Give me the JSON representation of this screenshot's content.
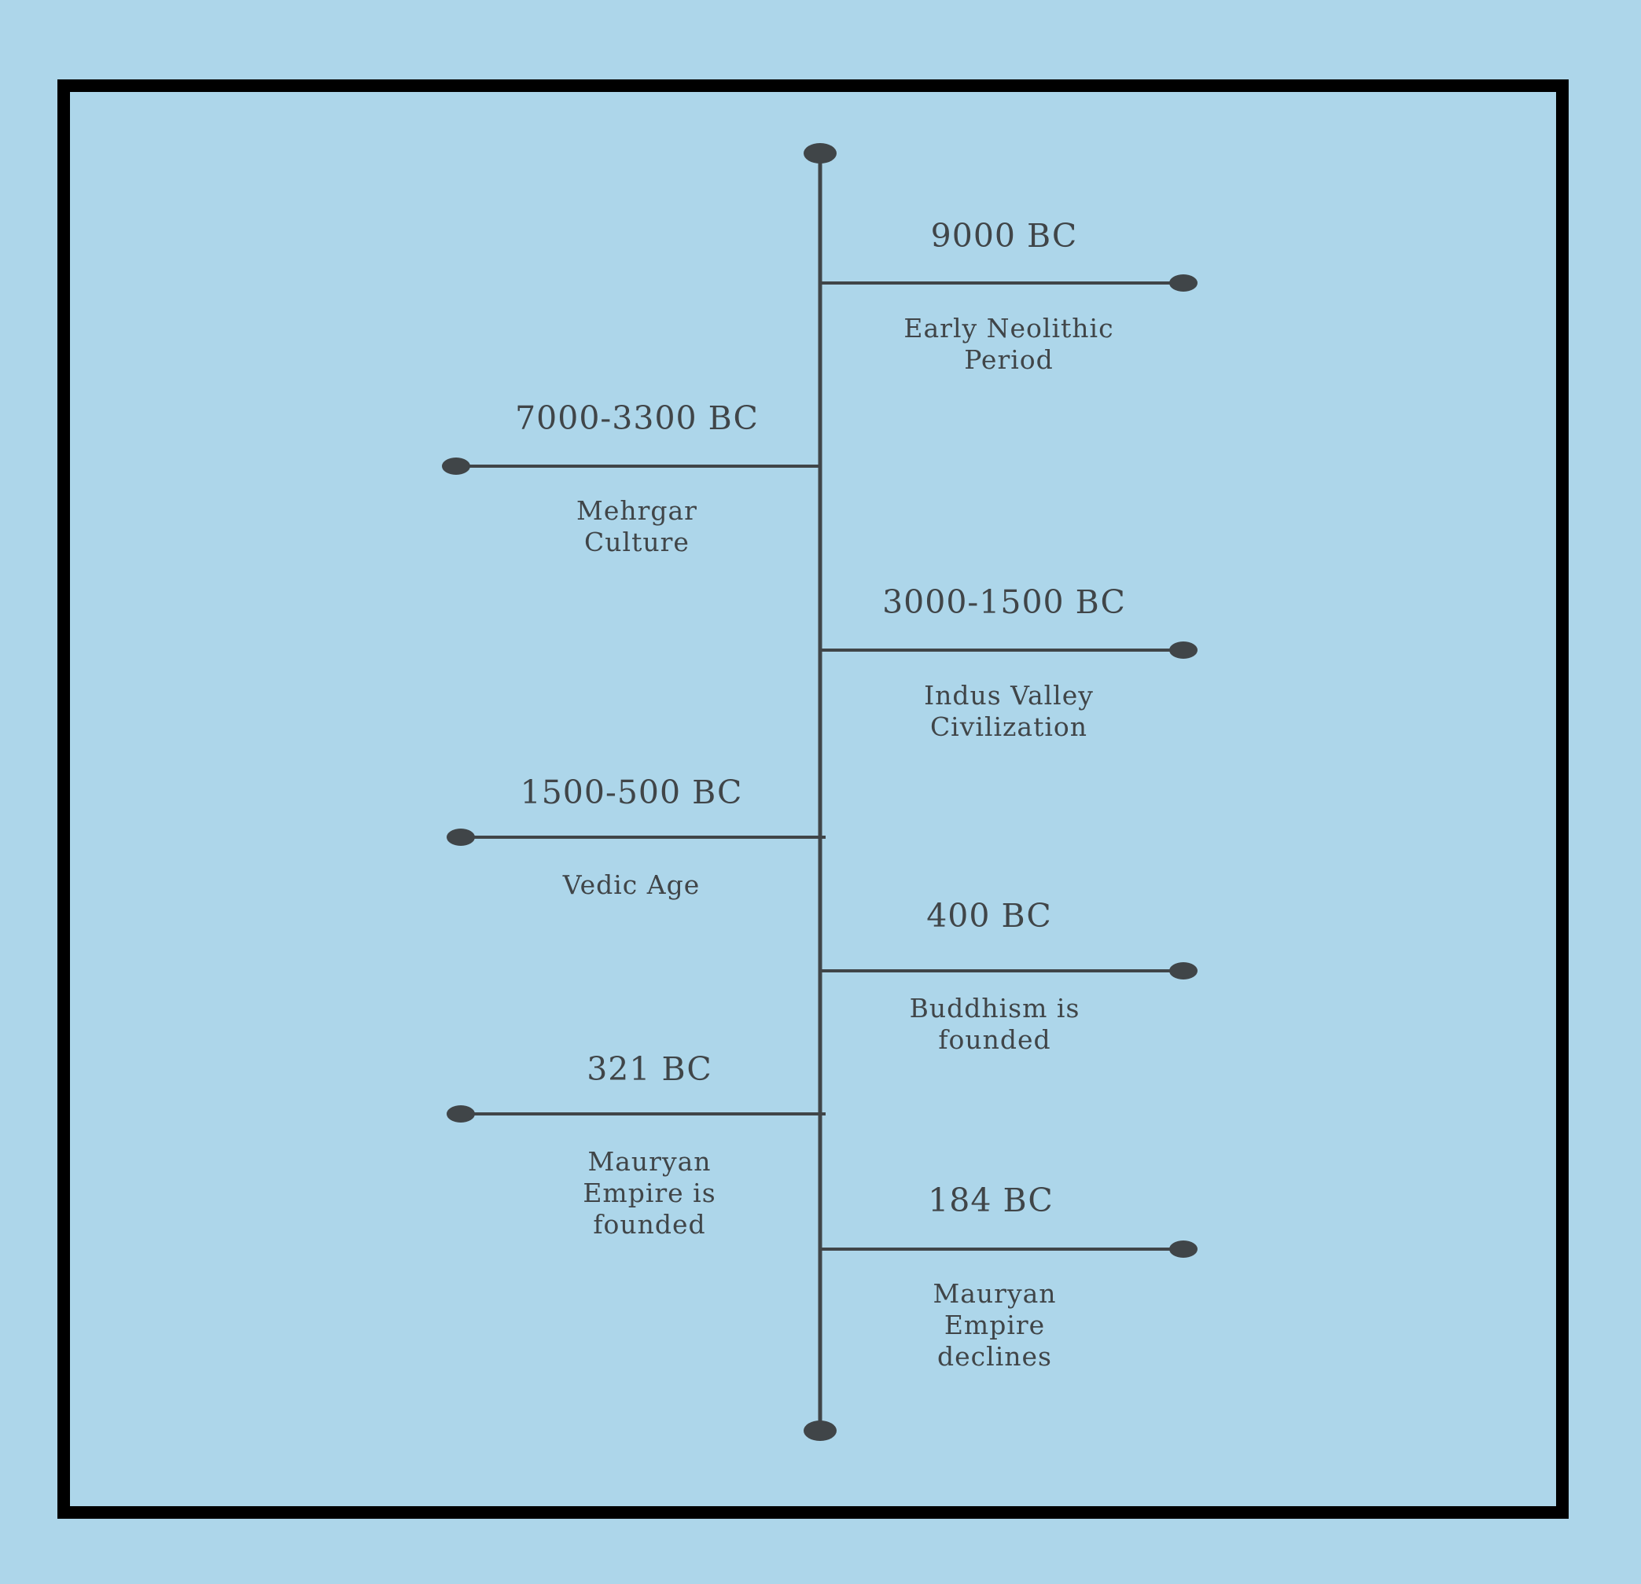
{
  "colors": {
    "background": "#add6ea",
    "frame_border": "#000000",
    "line": "#404548",
    "text": "#404548"
  },
  "timeline": {
    "events": [
      {
        "date": "9000 BC",
        "description": "Early Neolithic\nPeriod",
        "side": "right"
      },
      {
        "date": "7000-3300 BC",
        "description": "Mehrgar\nCulture",
        "side": "left"
      },
      {
        "date": "3000-1500 BC",
        "description": "Indus Valley\nCivilization",
        "side": "right"
      },
      {
        "date": "1500-500 BC",
        "description": "Vedic Age",
        "side": "left"
      },
      {
        "date": "400 BC",
        "description": "Buddhism is\nfounded",
        "side": "right"
      },
      {
        "date": "321 BC",
        "description": "Mauryan\nEmpire is\nfounded",
        "side": "left"
      },
      {
        "date": "184 BC",
        "description": "Mauryan\nEmpire\ndeclines",
        "side": "right"
      }
    ]
  }
}
